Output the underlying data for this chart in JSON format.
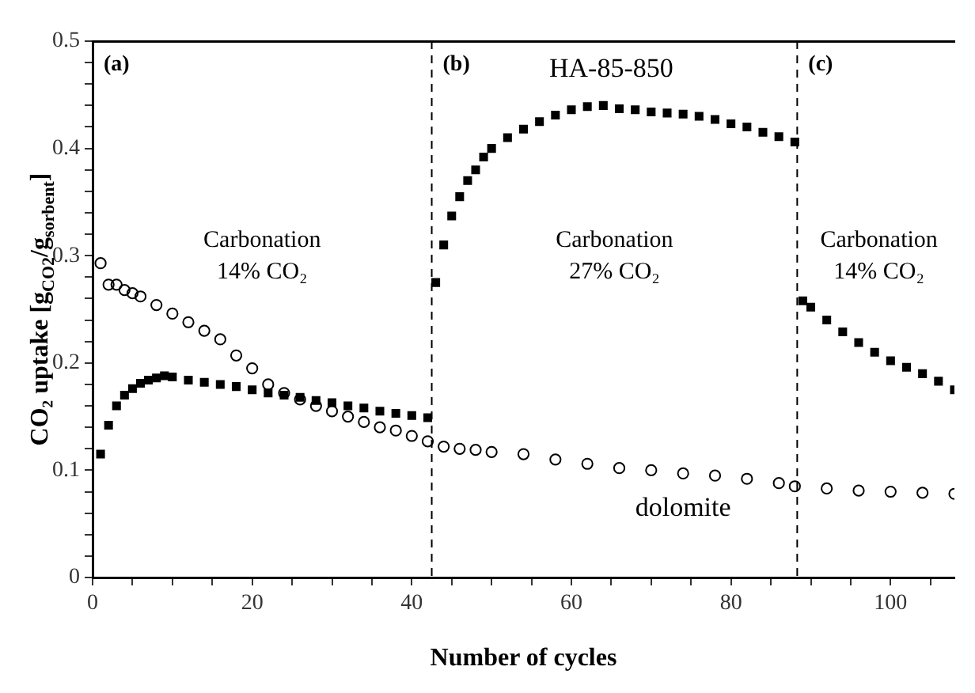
{
  "chart_data": {
    "type": "scatter",
    "xlabel": "Number of cycles",
    "ylabel": "CO₂ uptake [g$_{CO2}$/g$_{sorbent}$]",
    "xlim": [
      0,
      108
    ],
    "ylim": [
      0,
      0.5
    ],
    "xticks": [
      0,
      {
        "value": 5,
        "label": null
      },
      {
        "value": 10,
        "label": null
      },
      {
        "value": 15,
        "label": null
      },
      20,
      {
        "value": 25,
        "label": null
      },
      {
        "value": 30,
        "label": null
      },
      {
        "value": 35,
        "label": null
      },
      40,
      {
        "value": 45,
        "label": null
      },
      {
        "value": 50,
        "label": null
      },
      {
        "value": 55,
        "label": null
      },
      60,
      {
        "value": 65,
        "label": null
      },
      {
        "value": 70,
        "label": null
      },
      {
        "value": 75,
        "label": null
      },
      80,
      {
        "value": 85,
        "label": null
      },
      {
        "value": 90,
        "label": null
      },
      {
        "value": 95,
        "label": null
      },
      100,
      {
        "value": 105,
        "label": null
      }
    ],
    "yticks": [
      0,
      {
        "value": 0.02,
        "label": null
      },
      {
        "value": 0.04,
        "label": null
      },
      {
        "value": 0.06,
        "label": null
      },
      {
        "value": 0.08,
        "label": null
      },
      0.1,
      {
        "value": 0.12,
        "label": null
      },
      {
        "value": 0.14,
        "label": null
      },
      {
        "value": 0.16,
        "label": null
      },
      {
        "value": 0.18,
        "label": null
      },
      0.2,
      {
        "value": 0.22,
        "label": null
      },
      {
        "value": 0.24,
        "label": null
      },
      {
        "value": 0.26,
        "label": null
      },
      {
        "value": 0.28,
        "label": null
      },
      0.3,
      {
        "value": 0.32,
        "label": null
      },
      {
        "value": 0.34,
        "label": null
      },
      {
        "value": 0.36,
        "label": null
      },
      {
        "value": 0.38,
        "label": null
      },
      0.4,
      {
        "value": 0.42,
        "label": null
      },
      {
        "value": 0.44,
        "label": null
      },
      {
        "value": 0.46,
        "label": null
      },
      {
        "value": 0.48,
        "label": null
      },
      0.5
    ],
    "grid": false,
    "legend": false,
    "series": [
      {
        "name": "HA-85-850",
        "color": "#000000",
        "marker": "square",
        "x": [
          1,
          2,
          3,
          4,
          5,
          6,
          7,
          8,
          9,
          10,
          12,
          14,
          16,
          18,
          20,
          22,
          24,
          26,
          28,
          30,
          32,
          34,
          36,
          38,
          40,
          42,
          43,
          44,
          45,
          46,
          47,
          48,
          49,
          50,
          52,
          54,
          56,
          58,
          60,
          62,
          64,
          66,
          68,
          70,
          72,
          74,
          76,
          78,
          80,
          82,
          84,
          86,
          88,
          89,
          90,
          92,
          94,
          96,
          98,
          100,
          102,
          104,
          106,
          108
        ],
        "values": [
          0.115,
          0.142,
          0.16,
          0.17,
          0.176,
          0.181,
          0.184,
          0.186,
          0.188,
          0.187,
          0.184,
          0.182,
          0.18,
          0.178,
          0.175,
          0.172,
          0.17,
          0.168,
          0.165,
          0.163,
          0.16,
          0.158,
          0.155,
          0.153,
          0.151,
          0.149,
          0.275,
          0.31,
          0.337,
          0.355,
          0.37,
          0.38,
          0.392,
          0.4,
          0.41,
          0.418,
          0.425,
          0.431,
          0.436,
          0.439,
          0.44,
          0.437,
          0.436,
          0.434,
          0.433,
          0.432,
          0.43,
          0.427,
          0.423,
          0.42,
          0.415,
          0.411,
          0.406,
          0.258,
          0.252,
          0.24,
          0.229,
          0.219,
          0.21,
          0.202,
          0.196,
          0.19,
          0.183,
          0.175
        ]
      },
      {
        "name": "dolomite",
        "color": "#000000",
        "marker": "circle",
        "x": [
          1,
          2,
          3,
          4,
          5,
          6,
          8,
          10,
          12,
          14,
          16,
          18,
          20,
          22,
          24,
          26,
          28,
          30,
          32,
          34,
          36,
          38,
          40,
          42,
          44,
          46,
          48,
          50,
          54,
          58,
          62,
          66,
          70,
          74,
          78,
          82,
          86,
          88,
          92,
          96,
          100,
          104,
          108
        ],
        "values": [
          0.293,
          0.273,
          0.273,
          0.268,
          0.265,
          0.262,
          0.254,
          0.246,
          0.238,
          0.23,
          0.222,
          0.207,
          0.195,
          0.18,
          0.172,
          0.166,
          0.16,
          0.155,
          0.15,
          0.145,
          0.14,
          0.137,
          0.132,
          0.127,
          0.122,
          0.12,
          0.119,
          0.117,
          0.115,
          0.11,
          0.106,
          0.102,
          0.1,
          0.097,
          0.095,
          0.092,
          0.088,
          0.085,
          0.083,
          0.081,
          0.08,
          0.079,
          0.078
        ]
      }
    ],
    "ref_lines": [
      {
        "axis": "x",
        "value": 42.5,
        "line_style": "dashed"
      },
      {
        "axis": "x",
        "value": 88.3,
        "line_style": "dashed"
      }
    ],
    "annotations": [
      "(a)",
      "(b)",
      "(c)",
      "Carbonation\n14% CO₂",
      "Carbonation\n27% CO₂",
      "Carbonation\n14% CO₂"
    ]
  }
}
